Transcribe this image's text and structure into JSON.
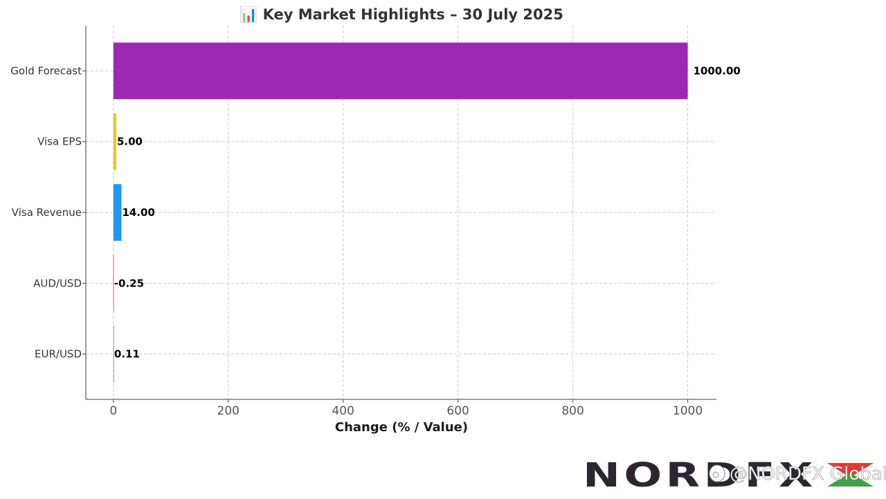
{
  "chart_data": {
    "type": "bar",
    "orientation": "horizontal",
    "title": "📊 Key Market Highlights – 30 July 2025",
    "xlabel": "Change (% / Value)",
    "ylabel": "",
    "xlim": [
      -48,
      1050
    ],
    "x_ticks": [
      0,
      200,
      400,
      600,
      800,
      1000
    ],
    "x_tick_labels": [
      "0",
      "200",
      "400",
      "600",
      "800",
      "1000"
    ],
    "grid": true,
    "categories": [
      "EUR/USD",
      "AUD/USD",
      "Visa Revenue",
      "Visa EPS",
      "Gold Forecast"
    ],
    "values": [
      0.11,
      -0.25,
      14.0,
      5.0,
      1000.0
    ],
    "value_labels": [
      "0.11",
      "-0.25",
      "14.00",
      "5.00",
      "1000.00"
    ],
    "colors": [
      "#4caf50",
      "#f44336",
      "#2196f3",
      "#f5c518",
      "#9c27b0"
    ]
  },
  "branding": {
    "logo_text": "NORDFX",
    "logo_accent_colors": [
      "#e53935",
      "#43a047"
    ],
    "watermark_icon": "weibo-icon",
    "watermark_text": "@NORDFX Global"
  }
}
